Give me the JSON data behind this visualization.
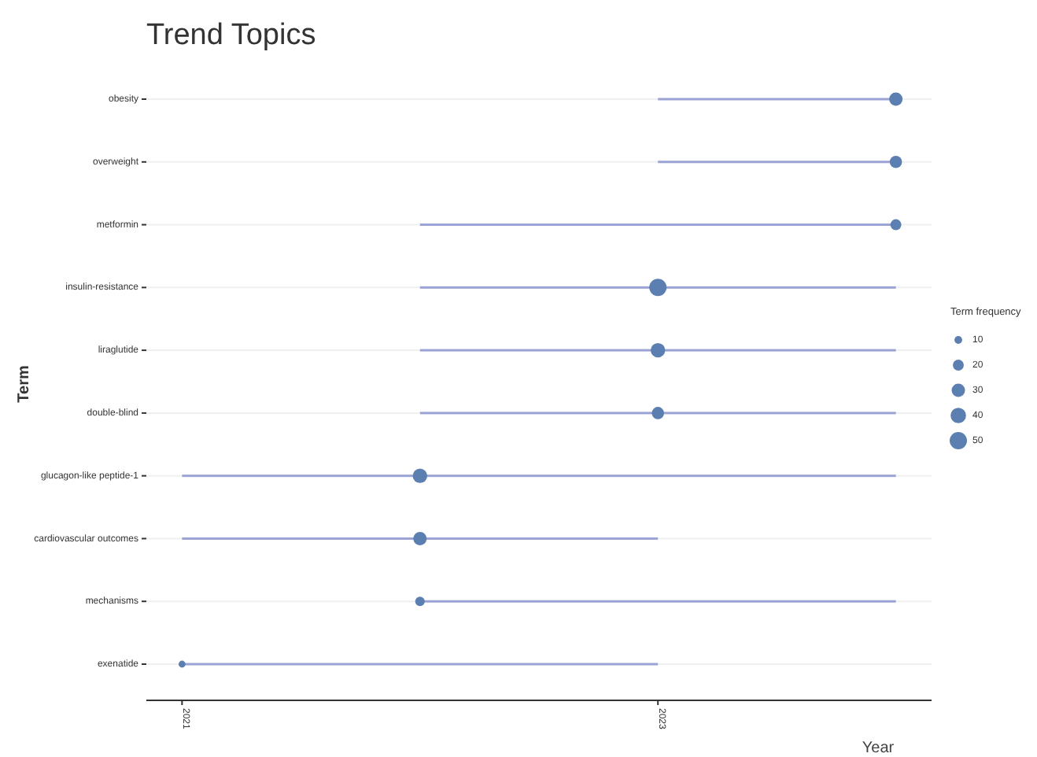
{
  "chart_data": {
    "type": "bar",
    "title": "Trend Topics",
    "xlabel": "Year",
    "ylabel": "Term",
    "legend_title": "Term frequency",
    "orientation": "horizontal",
    "categories": [
      "obesity",
      "overweight",
      "metformin",
      "insulin-resistance",
      "liraglutide",
      "double-blind",
      "glucagon-like peptide-1",
      "cardiovascular outcomes",
      "mechanisms",
      "exenatide"
    ],
    "series": [
      {
        "color": "#9aa3d4",
        "base": [
          2023,
          2023,
          2022,
          2022,
          2022,
          2022,
          2021,
          2021,
          2022,
          2021
        ],
        "values": [
          1,
          1,
          2,
          2,
          2,
          2,
          3,
          2,
          2,
          2
        ]
      },
      {
        "type": "bubble",
        "color": "#5b7fb0",
        "values": [
          2024,
          2024,
          2024,
          2023,
          2023,
          2023,
          2022,
          2022,
          2022,
          2021
        ],
        "sizes": [
          30,
          25,
          20,
          50,
          35,
          25,
          35,
          30,
          15,
          8
        ]
      }
    ],
    "size_legend": [
      10,
      20,
      30,
      40,
      50
    ],
    "xlim": [
      2020.85,
      2024.15
    ],
    "xticks": [
      2021,
      2023
    ],
    "grid": "y"
  }
}
